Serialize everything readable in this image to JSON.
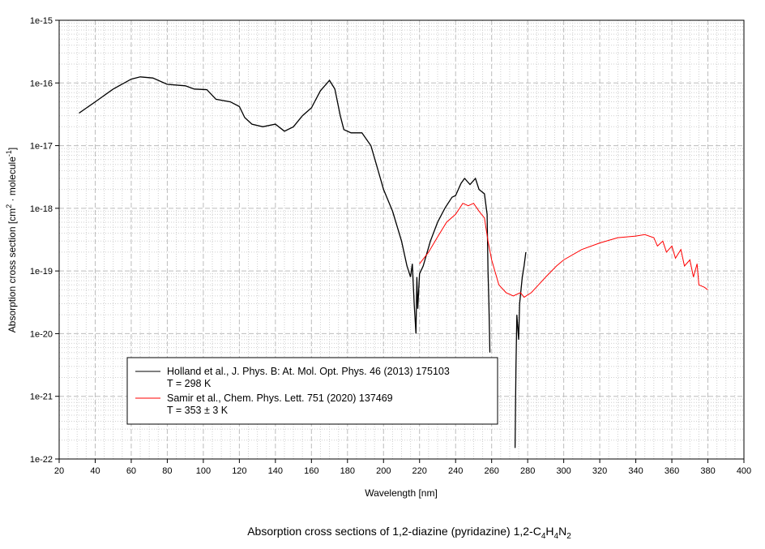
{
  "chart_data": {
    "type": "line",
    "title": {
      "main": "Absorption cross sections of 1,2-diazine (pyridazine) 1,2-C",
      "sub1": "4",
      "mid1": "H",
      "sub2": "4",
      "mid2": "N",
      "sub3": "2"
    },
    "xlabel": "Wavelength [nm]",
    "ylabel": {
      "pre": "Absorption cross section [cm",
      "sup1": "2",
      "mid": " · molecule",
      "sup2": "-1",
      "post": "]"
    },
    "xlim": [
      20,
      400
    ],
    "ylim": [
      1e-22,
      1e-15
    ],
    "yscale": "log",
    "grid": true,
    "legend_position": "bottom-left",
    "x_ticks": [
      "20",
      "40",
      "60",
      "80",
      "100",
      "120",
      "140",
      "160",
      "180",
      "200",
      "220",
      "240",
      "260",
      "280",
      "300",
      "320",
      "340",
      "360",
      "380",
      "400"
    ],
    "y_ticks": [
      "1e-22",
      "1e-21",
      "1e-20",
      "1e-19",
      "1e-18",
      "1e-17",
      "1e-16",
      "1e-15"
    ],
    "series": [
      {
        "name": "Holland et al., J. Phys. B: At. Mol. Opt. Phys. 46 (2013) 175103",
        "name2": "T = 298 K",
        "color": "#000000",
        "segments": [
          [
            [
              31,
              3.3e-17
            ],
            [
              40,
              5e-17
            ],
            [
              50,
              8e-17
            ],
            [
              60,
              1.15e-16
            ],
            [
              65,
              1.25e-16
            ],
            [
              72,
              1.2e-16
            ],
            [
              80,
              9.5e-17
            ],
            [
              90,
              9e-17
            ],
            [
              95,
              8e-17
            ],
            [
              102,
              7.8e-17
            ],
            [
              107,
              5.5e-17
            ],
            [
              115,
              5e-17
            ],
            [
              120,
              4.2e-17
            ],
            [
              123,
              2.8e-17
            ],
            [
              127,
              2.2e-17
            ],
            [
              133,
              2e-17
            ],
            [
              140,
              2.2e-17
            ],
            [
              145,
              1.7e-17
            ],
            [
              150,
              2e-17
            ],
            [
              155,
              3e-17
            ],
            [
              160,
              4e-17
            ],
            [
              165,
              7.5e-17
            ],
            [
              170,
              1.1e-16
            ],
            [
              173,
              8e-17
            ],
            [
              176,
              3e-17
            ],
            [
              178,
              1.8e-17
            ],
            [
              182,
              1.6e-17
            ],
            [
              188,
              1.6e-17
            ],
            [
              193,
              1e-17
            ],
            [
              197,
              4e-18
            ],
            [
              200,
              2e-18
            ],
            [
              205,
              9e-19
            ],
            [
              210,
              3e-19
            ],
            [
              213,
              1.2e-19
            ],
            [
              215,
              8e-20
            ],
            [
              216,
              1.3e-19
            ],
            [
              217,
              3e-20
            ],
            [
              218,
              1e-20
            ],
            [
              218.5,
              8e-20
            ],
            [
              219,
              2.5e-20
            ],
            [
              220,
              9e-20
            ],
            [
              222,
              1.2e-19
            ],
            [
              226,
              3e-19
            ],
            [
              230,
              6e-19
            ],
            [
              234,
              1e-18
            ],
            [
              238,
              1.5e-18
            ],
            [
              240,
              1.6e-18
            ],
            [
              243,
              2.5e-18
            ],
            [
              245,
              3e-18
            ],
            [
              248,
              2.4e-18
            ],
            [
              251,
              3e-18
            ],
            [
              253,
              2e-18
            ],
            [
              256,
              1.7e-18
            ],
            [
              257.5,
              8e-19
            ],
            [
              258,
              1e-19
            ],
            [
              258.5,
              3e-20
            ],
            [
              259,
              5e-21
            ]
          ],
          [
            [
              273,
              1.5e-22
            ],
            [
              273.5,
              3e-21
            ],
            [
              274,
              2e-20
            ],
            [
              275,
              8e-21
            ],
            [
              275.5,
              3e-20
            ],
            [
              277,
              8e-20
            ],
            [
              278,
              1.2e-19
            ],
            [
              279,
              2e-19
            ]
          ]
        ]
      },
      {
        "name": "Samir et al., Chem. Phys. Lett. 751 (2020) 137469",
        "name2": "T = 353 ± 3 K",
        "color": "#ff0000",
        "segments": [
          [
            [
              220,
              1.3e-19
            ],
            [
              225,
              2e-19
            ],
            [
              230,
              3.5e-19
            ],
            [
              235,
              6e-19
            ],
            [
              240,
              8e-19
            ],
            [
              244,
              1.2e-18
            ],
            [
              247,
              1.1e-18
            ],
            [
              250,
              1.2e-18
            ],
            [
              253,
              9e-19
            ],
            [
              256,
              7e-19
            ],
            [
              258,
              3e-19
            ],
            [
              260,
              1.5e-19
            ],
            [
              264,
              6e-20
            ],
            [
              268,
              4.5e-20
            ],
            [
              272,
              4e-20
            ],
            [
              276,
              4.5e-20
            ],
            [
              278,
              3.8e-20
            ],
            [
              282,
              4.5e-20
            ],
            [
              286,
              6e-20
            ],
            [
              290,
              8e-20
            ],
            [
              296,
              1.2e-19
            ],
            [
              300,
              1.5e-19
            ],
            [
              310,
              2.2e-19
            ],
            [
              320,
              2.8e-19
            ],
            [
              330,
              3.4e-19
            ],
            [
              340,
              3.6e-19
            ],
            [
              345,
              3.8e-19
            ],
            [
              350,
              3.4e-19
            ],
            [
              352,
              2.5e-19
            ],
            [
              355,
              3e-19
            ],
            [
              357,
              2e-19
            ],
            [
              360,
              2.5e-19
            ],
            [
              362,
              1.6e-19
            ],
            [
              365,
              2.2e-19
            ],
            [
              367,
              1.2e-19
            ],
            [
              370,
              1.5e-19
            ],
            [
              372,
              8e-20
            ],
            [
              374,
              1.3e-19
            ],
            [
              375,
              6e-20
            ],
            [
              378,
              5.5e-20
            ],
            [
              380,
              5e-20
            ]
          ]
        ]
      }
    ]
  }
}
